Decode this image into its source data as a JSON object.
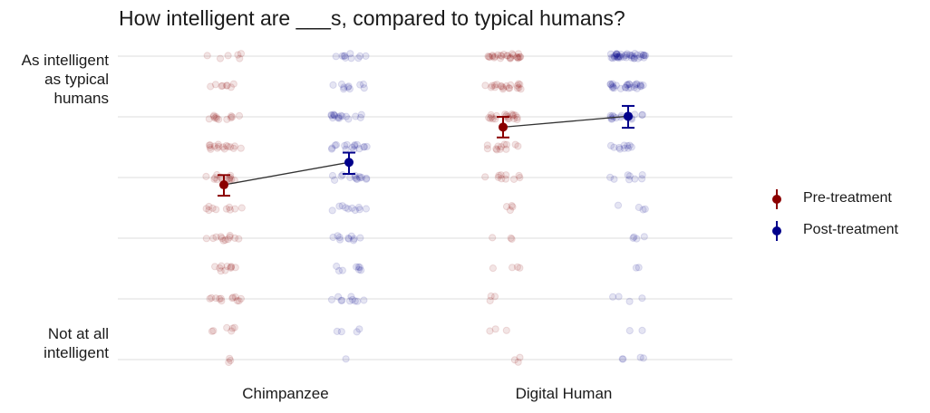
{
  "chart_data": {
    "type": "scatter",
    "title": "How intelligent are ___s, compared to typical humans?",
    "xlabel": "",
    "ylabel": "",
    "categories": [
      "Chimpanzee",
      "Digital Human"
    ],
    "ylim": [
      1,
      6
    ],
    "y_tick_labels": {
      "top": [
        "As intelligent",
        "as typical",
        "humans"
      ],
      "bottom": [
        "Not at all",
        "intelligent"
      ]
    },
    "series": [
      {
        "name": "Pre-treatment",
        "color": "#8b0000",
        "means": [
          3.88,
          4.83
        ],
        "ci_low": [
          3.7,
          4.66
        ],
        "ci_high": [
          4.04,
          5.0
        ]
      },
      {
        "name": "Post-treatment",
        "color": "#00008b",
        "means": [
          4.25,
          5.01
        ],
        "ci_low": [
          4.06,
          4.82
        ],
        "ci_high": [
          4.41,
          5.18
        ]
      }
    ],
    "legend": {
      "position": "right",
      "entries": [
        "Pre-treatment",
        "Post-treatment"
      ]
    },
    "grid": true
  }
}
